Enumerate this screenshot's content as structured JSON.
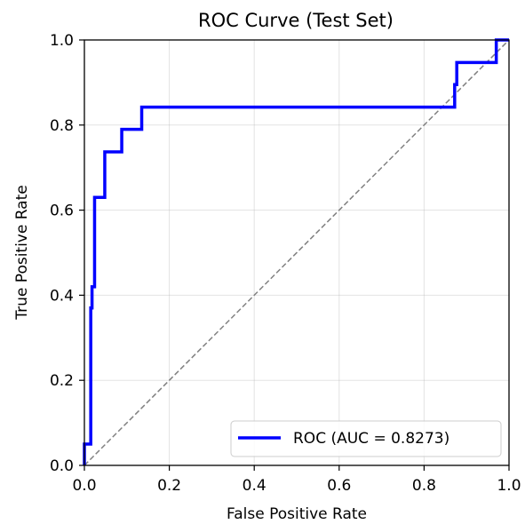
{
  "chart_data": {
    "type": "line",
    "title": "ROC Curve (Test Set)",
    "xlabel": "False Positive Rate",
    "ylabel": "True Positive Rate",
    "xlim": [
      0.0,
      1.0
    ],
    "ylim": [
      0.0,
      1.0
    ],
    "xticks": [
      "0.0",
      "0.2",
      "0.4",
      "0.6",
      "0.8",
      "1.0"
    ],
    "yticks": [
      "0.0",
      "0.2",
      "0.4",
      "0.6",
      "0.8",
      "1.0"
    ],
    "grid": true,
    "legend_position": "lower-right",
    "series": [
      {
        "name": "ROC (AUC = 0.8273)",
        "color": "#0000ff",
        "style": "solid",
        "x": [
          0.0,
          0.0,
          0.003,
          0.003,
          0.015,
          0.015,
          0.018,
          0.018,
          0.024,
          0.024,
          0.028,
          0.028,
          0.048,
          0.048,
          0.088,
          0.088,
          0.135,
          0.135,
          0.872,
          0.872,
          0.877,
          0.877,
          0.97,
          0.97,
          1.0
        ],
        "y": [
          0.0,
          0.05,
          0.05,
          0.05,
          0.05,
          0.37,
          0.37,
          0.42,
          0.42,
          0.63,
          0.63,
          0.63,
          0.63,
          0.737,
          0.737,
          0.79,
          0.79,
          0.842,
          0.842,
          0.895,
          0.895,
          0.947,
          0.947,
          1.0,
          1.0
        ]
      },
      {
        "name": "",
        "color": "#808080",
        "style": "dashed",
        "x": [
          0.0,
          1.0
        ],
        "y": [
          0.0,
          1.0
        ]
      }
    ]
  }
}
